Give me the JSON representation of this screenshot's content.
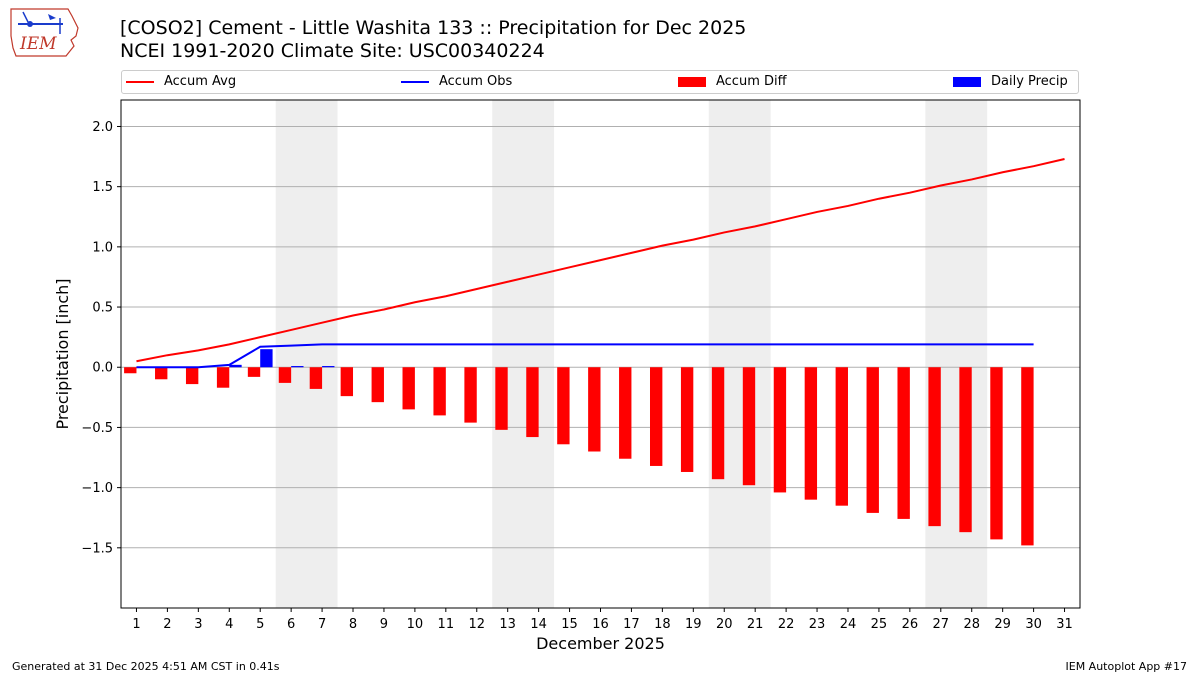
{
  "header": {
    "title": "[COSO2] Cement - Little Washita 133 :: Precipitation for Dec 2025",
    "subtitle": "NCEI 1991-2020 Climate Site: USC00340224",
    "logo_text": "IEM"
  },
  "footer": {
    "generated": "Generated at 31 Dec 2025 4:51 AM CST in 0.41s",
    "app": "IEM Autoplot App #17"
  },
  "legend": {
    "accum_avg": "Accum Avg",
    "accum_obs": "Accum Obs",
    "accum_diff": "Accum Diff",
    "daily_precip": "Daily Precip"
  },
  "colors": {
    "accum_avg": "#ff0000",
    "accum_obs": "#0000ff",
    "accum_diff": "#ff0000",
    "daily_precip": "#0000ff",
    "weekend_shade": "#eeeeee",
    "grid": "#b0b0b0"
  },
  "chart_data": {
    "type": "bar",
    "xlabel": "December 2025",
    "ylabel": "Precipitation [inch]",
    "ylim": [
      -2.0,
      2.22
    ],
    "yticks": [
      2.0,
      1.5,
      1.0,
      0.5,
      0.0,
      -0.5,
      -1.0,
      -1.5
    ],
    "ytick_labels": [
      "2.0",
      "1.5",
      "1.0",
      "0.5",
      "0.0",
      "−0.5",
      "−1.0",
      "−1.5"
    ],
    "xlim": [
      0.5,
      31.5
    ],
    "days": [
      1,
      2,
      3,
      4,
      5,
      6,
      7,
      8,
      9,
      10,
      11,
      12,
      13,
      14,
      15,
      16,
      17,
      18,
      19,
      20,
      21,
      22,
      23,
      24,
      25,
      26,
      27,
      28,
      29,
      30,
      31
    ],
    "weekends": [
      [
        6,
        7
      ],
      [
        13,
        14
      ],
      [
        20,
        21
      ],
      [
        27,
        28
      ]
    ],
    "grid": "horizontal",
    "legend_position": "top",
    "series": [
      {
        "name": "Accum Avg",
        "kind": "line",
        "x": [
          1,
          2,
          3,
          4,
          5,
          6,
          7,
          8,
          9,
          10,
          11,
          12,
          13,
          14,
          15,
          16,
          17,
          18,
          19,
          20,
          21,
          22,
          23,
          24,
          25,
          26,
          27,
          28,
          29,
          30,
          31
        ],
        "values": [
          0.05,
          0.1,
          0.14,
          0.19,
          0.25,
          0.31,
          0.37,
          0.43,
          0.48,
          0.54,
          0.59,
          0.65,
          0.71,
          0.77,
          0.83,
          0.89,
          0.95,
          1.01,
          1.06,
          1.12,
          1.17,
          1.23,
          1.29,
          1.34,
          1.4,
          1.45,
          1.51,
          1.56,
          1.62,
          1.67,
          1.73
        ]
      },
      {
        "name": "Accum Obs",
        "kind": "line",
        "x": [
          1,
          2,
          3,
          4,
          5,
          6,
          7,
          8,
          9,
          10,
          11,
          12,
          13,
          14,
          15,
          16,
          17,
          18,
          19,
          20,
          21,
          22,
          23,
          24,
          25,
          26,
          27,
          28,
          29,
          30
        ],
        "values": [
          0.0,
          0.0,
          0.0,
          0.02,
          0.17,
          0.18,
          0.19,
          0.19,
          0.19,
          0.19,
          0.19,
          0.19,
          0.19,
          0.19,
          0.19,
          0.19,
          0.19,
          0.19,
          0.19,
          0.19,
          0.19,
          0.19,
          0.19,
          0.19,
          0.19,
          0.19,
          0.19,
          0.19,
          0.19,
          0.19
        ]
      },
      {
        "name": "Accum Diff",
        "kind": "bar",
        "x": [
          1,
          2,
          3,
          4,
          5,
          6,
          7,
          8,
          9,
          10,
          11,
          12,
          13,
          14,
          15,
          16,
          17,
          18,
          19,
          20,
          21,
          22,
          23,
          24,
          25,
          26,
          27,
          28,
          29,
          30
        ],
        "values": [
          -0.05,
          -0.1,
          -0.14,
          -0.17,
          -0.08,
          -0.13,
          -0.18,
          -0.24,
          -0.29,
          -0.35,
          -0.4,
          -0.46,
          -0.52,
          -0.58,
          -0.64,
          -0.7,
          -0.76,
          -0.82,
          -0.87,
          -0.93,
          -0.98,
          -1.04,
          -1.1,
          -1.15,
          -1.21,
          -1.26,
          -1.32,
          -1.37,
          -1.43,
          -1.48
        ]
      },
      {
        "name": "Daily Precip",
        "kind": "bar",
        "x": [
          4,
          5,
          6,
          7
        ],
        "values": [
          0.02,
          0.15,
          0.01,
          0.01
        ]
      }
    ]
  }
}
